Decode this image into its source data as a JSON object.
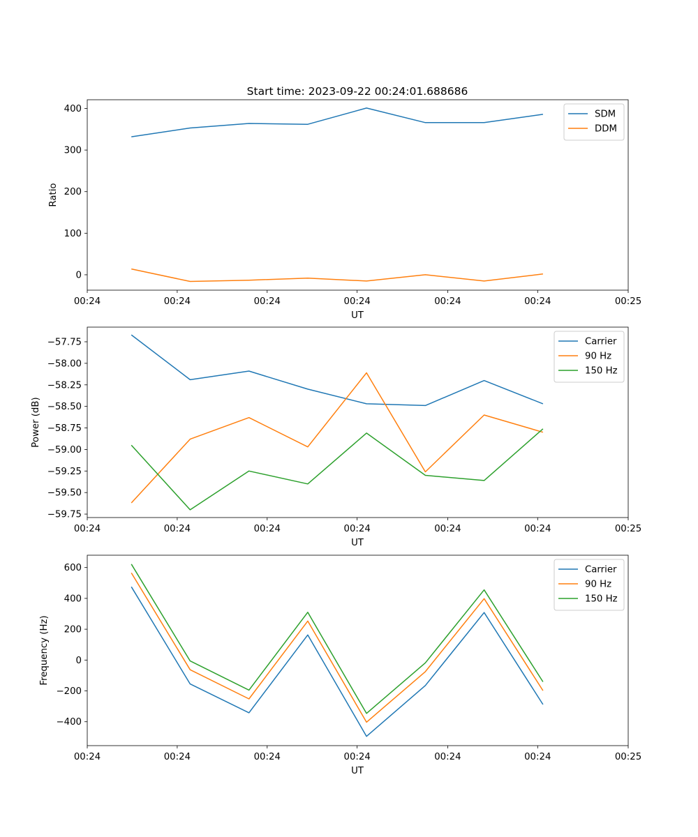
{
  "title": "Start time: 2023-09-22 00:24:01.688686",
  "chart_data": [
    {
      "type": "line",
      "ylabel": "Ratio",
      "xlabel": "UT",
      "x": [
        0,
        1,
        2,
        3,
        4,
        5,
        6,
        7
      ],
      "xlim": [
        -0.75,
        8.45
      ],
      "x_ticks": [
        -0.75,
        0.78,
        2.31,
        3.84,
        5.38,
        6.91,
        8.45
      ],
      "x_tick_labels": [
        "00:24",
        "00:24",
        "00:24",
        "00:24",
        "00:24",
        "00:24",
        "00:25"
      ],
      "ylim": [
        -37,
        421
      ],
      "y_ticks": [
        0,
        100,
        200,
        300,
        400
      ],
      "y_tick_labels": [
        "0",
        "100",
        "200",
        "300",
        "400"
      ],
      "legend": "top-right",
      "series": [
        {
          "name": "SDM",
          "color": "#1f77b4",
          "values": [
            332,
            353,
            364,
            362,
            401,
            366,
            366,
            386
          ]
        },
        {
          "name": "DDM",
          "color": "#ff7f0e",
          "values": [
            14,
            -16,
            -13,
            -8,
            -15,
            0,
            -15,
            2
          ]
        }
      ]
    },
    {
      "type": "line",
      "ylabel": "Power (dB)",
      "xlabel": "UT",
      "x": [
        0,
        1,
        2,
        3,
        4,
        5,
        6,
        7
      ],
      "xlim": [
        -0.75,
        8.45
      ],
      "x_ticks": [
        -0.75,
        0.78,
        2.31,
        3.84,
        5.38,
        6.91,
        8.45
      ],
      "x_tick_labels": [
        "00:24",
        "00:24",
        "00:24",
        "00:24",
        "00:24",
        "00:24",
        "00:25"
      ],
      "ylim": [
        -59.79,
        -57.58
      ],
      "y_ticks": [
        -57.75,
        -58.0,
        -58.25,
        -58.5,
        -58.75,
        -59.0,
        -59.25,
        -59.5,
        -59.75
      ],
      "y_tick_labels": [
        "−57.75",
        "−58.00",
        "−58.25",
        "−58.50",
        "−58.75",
        "−59.00",
        "−59.25",
        "−59.50",
        "−59.75"
      ],
      "legend": "top-right",
      "series": [
        {
          "name": "Carrier",
          "color": "#1f77b4",
          "values": [
            -57.67,
            -58.19,
            -58.09,
            -58.3,
            -58.47,
            -58.49,
            -58.2,
            -58.47
          ]
        },
        {
          "name": "90 Hz",
          "color": "#ff7f0e",
          "values": [
            -59.62,
            -58.88,
            -58.63,
            -58.97,
            -58.11,
            -59.26,
            -58.6,
            -58.8
          ]
        },
        {
          "name": "150 Hz",
          "color": "#2ca02c",
          "values": [
            -58.95,
            -59.7,
            -59.25,
            -59.4,
            -58.81,
            -59.3,
            -59.36,
            -58.76
          ]
        }
      ]
    },
    {
      "type": "line",
      "ylabel": "Frequency (Hz)",
      "xlabel": "UT",
      "x": [
        0,
        1,
        2,
        3,
        4,
        5,
        6,
        7
      ],
      "xlim": [
        -0.75,
        8.45
      ],
      "x_ticks": [
        -0.75,
        0.78,
        2.31,
        3.84,
        5.38,
        6.91,
        8.45
      ],
      "x_tick_labels": [
        "00:24",
        "00:24",
        "00:24",
        "00:24",
        "00:24",
        "00:24",
        "00:25"
      ],
      "ylim": [
        -555,
        680
      ],
      "y_ticks": [
        600,
        400,
        200,
        0,
        -200,
        -400
      ],
      "y_tick_labels": [
        "600",
        "400",
        "200",
        "0",
        "−200",
        "−400"
      ],
      "legend": "top-right",
      "series": [
        {
          "name": "Carrier",
          "color": "#1f77b4",
          "values": [
            475,
            -155,
            -342,
            163,
            -495,
            -165,
            308,
            -288
          ]
        },
        {
          "name": "90 Hz",
          "color": "#ff7f0e",
          "values": [
            565,
            -63,
            -252,
            253,
            -403,
            -75,
            398,
            -198
          ]
        },
        {
          "name": "150 Hz",
          "color": "#2ca02c",
          "values": [
            622,
            -6,
            -195,
            310,
            -346,
            -18,
            455,
            -141
          ]
        }
      ]
    }
  ]
}
